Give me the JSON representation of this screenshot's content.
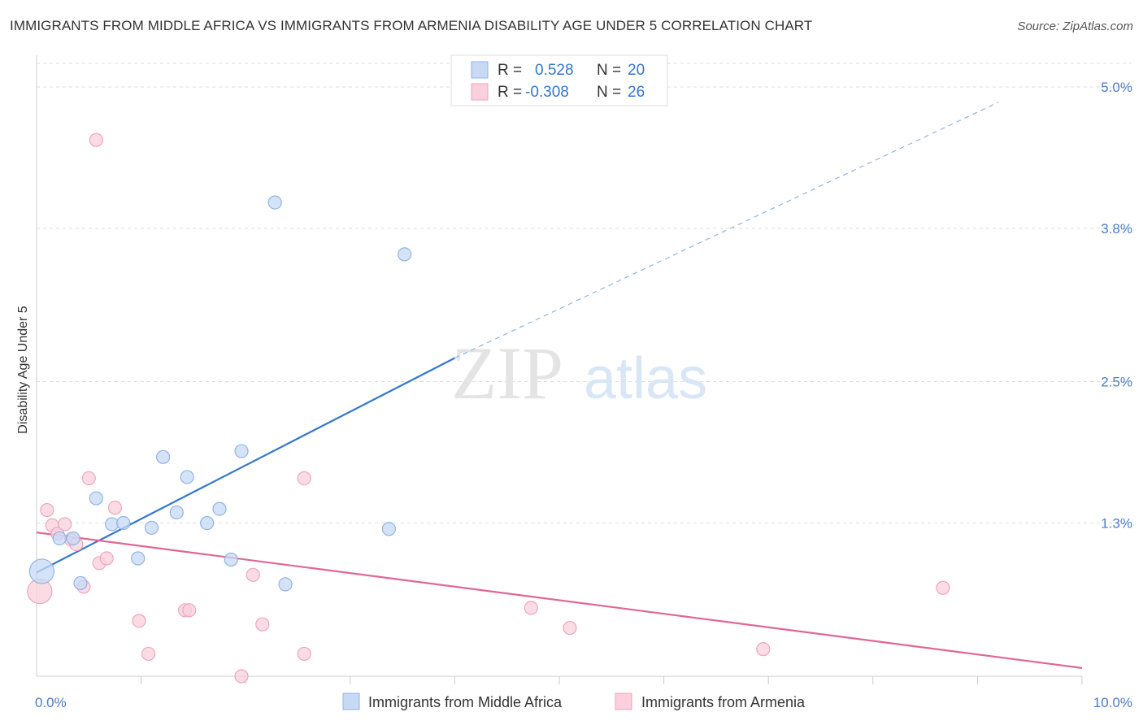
{
  "header": {
    "title": "IMMIGRANTS FROM MIDDLE AFRICA VS IMMIGRANTS FROM ARMENIA DISABILITY AGE UNDER 5 CORRELATION CHART",
    "source": "Source: ZipAtlas.com"
  },
  "watermark": {
    "part1": "ZIP",
    "part2": "atlas"
  },
  "legend": {
    "series1": {
      "r_label": "R = ",
      "r_value": "0.528",
      "n_label": "N = ",
      "n_value": "20"
    },
    "series2": {
      "r_label": "R = ",
      "r_value": "-0.308",
      "n_label": "N = ",
      "n_value": "26"
    }
  },
  "bottom_legend": {
    "series1": "Immigrants from Middle Africa",
    "series2": "Immigrants from Armenia"
  },
  "colors": {
    "blue_fill": "#c7d9f5",
    "blue_stroke": "#8fb4e6",
    "blue_line": "#3377cc",
    "pink_fill": "#f9d0dc",
    "pink_stroke": "#eea5bb",
    "pink_line": "#e06694",
    "grid": "#dddddd",
    "tick_text": "#4a7cc9"
  },
  "chart_data": {
    "type": "scatter",
    "title": "IMMIGRANTS FROM MIDDLE AFRICA VS IMMIGRANTS FROM ARMENIA DISABILITY AGE UNDER 5 CORRELATION CHART",
    "xlabel": "",
    "ylabel": "Disability Age Under 5",
    "xlim": [
      0,
      10
    ],
    "ylim": [
      0,
      5.2
    ],
    "x_tick_labels": [
      "0.0%",
      "10.0%"
    ],
    "y_ticks": [
      1.3,
      2.5,
      3.8,
      5.0
    ],
    "y_tick_labels": [
      "1.3%",
      "2.5%",
      "3.8%",
      "5.0%"
    ],
    "grid": true,
    "legend_position": "top-center",
    "series": [
      {
        "name": "Immigrants from Middle Africa",
        "color": "#c7d9f5",
        "R": 0.528,
        "N": 20,
        "trend": {
          "x": [
            0.0,
            4.0
          ],
          "y": [
            0.88,
            2.7
          ],
          "extended_to": [
            9.2,
            4.87
          ]
        },
        "points": [
          {
            "x": 0.05,
            "y": 0.89,
            "size": "large"
          },
          {
            "x": 0.22,
            "y": 1.17
          },
          {
            "x": 0.35,
            "y": 1.17
          },
          {
            "x": 0.42,
            "y": 0.79
          },
          {
            "x": 0.57,
            "y": 1.51
          },
          {
            "x": 0.72,
            "y": 1.29
          },
          {
            "x": 0.83,
            "y": 1.3
          },
          {
            "x": 0.97,
            "y": 1.0
          },
          {
            "x": 1.1,
            "y": 1.26
          },
          {
            "x": 1.21,
            "y": 1.86
          },
          {
            "x": 1.34,
            "y": 1.39
          },
          {
            "x": 1.44,
            "y": 1.69
          },
          {
            "x": 1.63,
            "y": 1.3
          },
          {
            "x": 1.75,
            "y": 1.42
          },
          {
            "x": 1.86,
            "y": 0.99
          },
          {
            "x": 1.96,
            "y": 1.91
          },
          {
            "x": 2.28,
            "y": 4.02
          },
          {
            "x": 2.38,
            "y": 0.78
          },
          {
            "x": 3.37,
            "y": 1.25
          },
          {
            "x": 3.52,
            "y": 3.58
          }
        ]
      },
      {
        "name": "Immigrants from Armenia",
        "color": "#f9d0dc",
        "R": -0.308,
        "N": 26,
        "trend": {
          "x": [
            0.0,
            10.0
          ],
          "y": [
            1.22,
            0.07
          ]
        },
        "points": [
          {
            "x": 0.03,
            "y": 0.72,
            "size": "large"
          },
          {
            "x": 0.1,
            "y": 1.41
          },
          {
            "x": 0.15,
            "y": 1.28
          },
          {
            "x": 0.2,
            "y": 1.21
          },
          {
            "x": 0.27,
            "y": 1.29
          },
          {
            "x": 0.33,
            "y": 1.16
          },
          {
            "x": 0.38,
            "y": 1.12
          },
          {
            "x": 0.45,
            "y": 0.76
          },
          {
            "x": 0.5,
            "y": 1.68
          },
          {
            "x": 0.6,
            "y": 0.96
          },
          {
            "x": 0.67,
            "y": 1.0
          },
          {
            "x": 0.75,
            "y": 1.43
          },
          {
            "x": 0.57,
            "y": 4.55
          },
          {
            "x": 0.98,
            "y": 0.47
          },
          {
            "x": 1.07,
            "y": 0.19
          },
          {
            "x": 1.42,
            "y": 0.56
          },
          {
            "x": 1.46,
            "y": 0.56
          },
          {
            "x": 1.96,
            "y": 0.0
          },
          {
            "x": 2.07,
            "y": 0.86
          },
          {
            "x": 2.16,
            "y": 0.44
          },
          {
            "x": 2.56,
            "y": 1.68
          },
          {
            "x": 2.56,
            "y": 0.19
          },
          {
            "x": 4.73,
            "y": 0.58
          },
          {
            "x": 5.1,
            "y": 0.41
          },
          {
            "x": 6.95,
            "y": 0.23
          },
          {
            "x": 8.67,
            "y": 0.75
          }
        ]
      }
    ]
  }
}
